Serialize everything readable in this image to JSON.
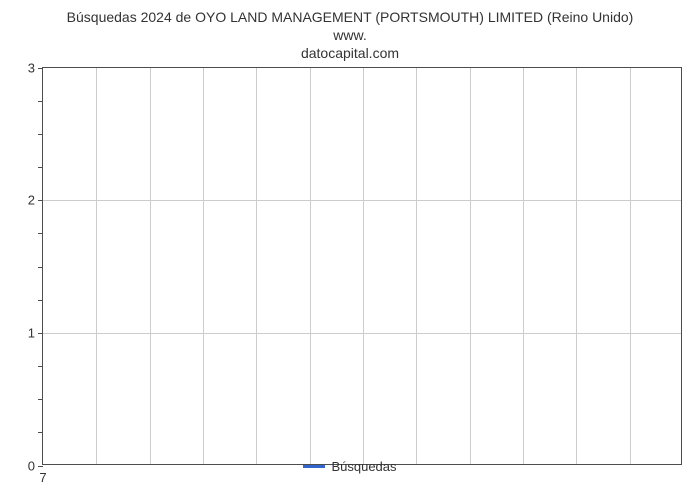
{
  "chart": {
    "type": "line",
    "title_line1": "Búsquedas 2024 de OYO LAND MANAGEMENT (PORTSMOUTH) LIMITED (Reino Unido) www.",
    "title_line2": "datocapital.com",
    "title_fontsize": 14,
    "title_color": "#333333",
    "background_color": "#ffffff",
    "plot_border_color": "#4d4d4d",
    "grid_color": "#cccccc",
    "y_axis": {
      "min": 0,
      "max": 3,
      "major_ticks": [
        0,
        1,
        2,
        3
      ],
      "minor_tick_step": 0.25,
      "label_fontsize": 13,
      "label_color": "#333333"
    },
    "x_axis": {
      "categories": [
        "7"
      ],
      "grid_count": 12,
      "label_fontsize": 13,
      "label_color": "#333333"
    },
    "series": [
      {
        "name": "Búsquedas",
        "color": "#3366cc",
        "line_width": 3,
        "x": [
          7
        ],
        "y": [
          0
        ]
      }
    ],
    "legend": {
      "position": "bottom",
      "label": "Búsquedas",
      "fontsize": 13,
      "swatch_color": "#3366cc"
    }
  }
}
